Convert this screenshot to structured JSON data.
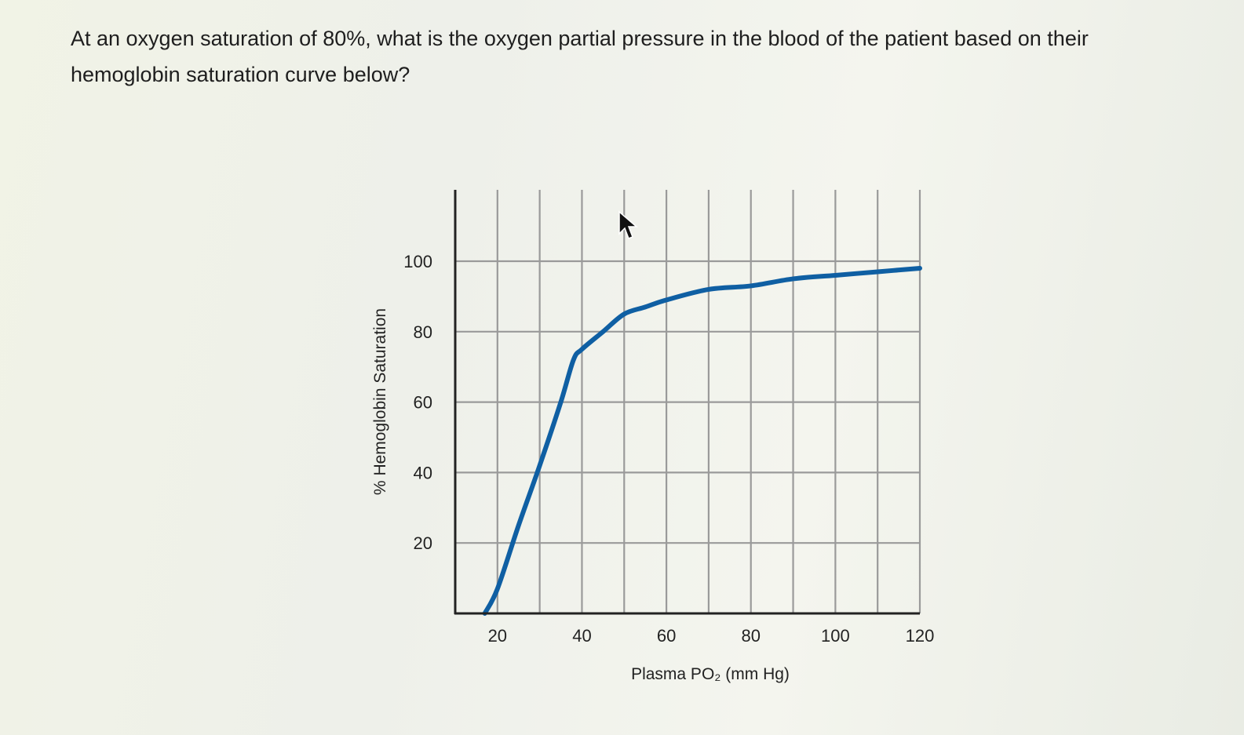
{
  "question": {
    "text": "At an oxygen saturation of 80%, what is the oxygen partial pressure in the blood of the patient based on their hemoglobin saturation curve below?"
  },
  "chart_data": {
    "type": "line",
    "title": "",
    "xlabel": "Plasma PO₂ (mm Hg)",
    "ylabel": "% Hemoglobin Saturation",
    "xlim": [
      10,
      120
    ],
    "ylim": [
      0,
      100
    ],
    "x_ticks": [
      20,
      40,
      60,
      80,
      100,
      120
    ],
    "y_ticks": [
      20,
      40,
      60,
      80,
      100
    ],
    "x_gridlines": [
      20,
      30,
      40,
      50,
      60,
      70,
      80,
      90,
      100,
      110,
      120
    ],
    "grid": true,
    "legend": "none",
    "series": [
      {
        "color": "#0f5fa3",
        "x": [
          17,
          20,
          25,
          30,
          35,
          38,
          40,
          45,
          50,
          55,
          60,
          70,
          80,
          90,
          100,
          110,
          120
        ],
        "y": [
          0,
          7,
          25,
          42,
          60,
          72,
          75,
          80,
          85,
          87,
          89,
          92,
          93,
          95,
          96,
          97,
          98
        ]
      }
    ]
  }
}
